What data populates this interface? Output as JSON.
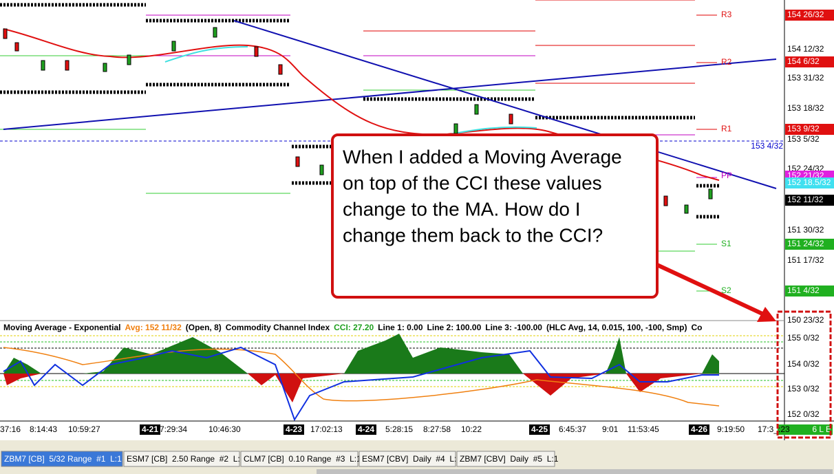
{
  "price_axis": {
    "labels": [
      "154 12/32",
      "153 31/32",
      "153 18/32",
      "153 5/32",
      "152 24/32",
      "151 30/32",
      "151 17/32",
      "150 23/32"
    ],
    "flags": [
      "154 26/32",
      "154 6/32",
      "153 9/32",
      "152 21/32",
      "152 18.5/32",
      "152 11/32",
      "151 24/32",
      "151 4/32"
    ]
  },
  "pivots": [
    "R3",
    "R2",
    "R1",
    "PP",
    "S1",
    "S2"
  ],
  "line_label": "153 4/32",
  "indicator_header": [
    "Moving Average - Exponential",
    "Avg: 152 11/32",
    "(Open, 8)",
    "Commodity Channel Index",
    "CCI: 27.20",
    "Line 1: 0.00",
    "Line 2: 100.00",
    "Line 3: -100.00",
    "(HLC Avg, 14, 0.015, 100, -100, Smp)",
    "Co"
  ],
  "indicator_axis": [
    "155 0/32",
    "154 0/32",
    "153 0/32",
    "152 0/32"
  ],
  "status_box": "6 L E",
  "time_axis": [
    "37:16",
    "8:14:43",
    "10:59:27",
    "4-21",
    "7:29:34",
    "10:46:30",
    "4-23",
    "17:02:13",
    "4-24",
    "5:28:15",
    "8:27:58",
    "10:22",
    "4-25",
    "6:45:37",
    "9:01",
    "11:53:45",
    "4-26",
    "9:19:50",
    "17:3_:23"
  ],
  "tabs": [
    "ZBM7 [CB]  5/32 Range  #1  L:1",
    "ESM7 [CB]  2.50 Range  #2  L:1",
    "CLM7 [CB]  0.10 Range  #3  L:1",
    "ESM7 [CBV]  Daily  #4  L:1",
    "ZBM7 [CBV]  Daily  #5  L:1"
  ],
  "callout": [
    "When I added a Moving Average",
    "on top of the CCI these values",
    "change to the MA. How do I",
    "change them back to the CCI?"
  ]
}
